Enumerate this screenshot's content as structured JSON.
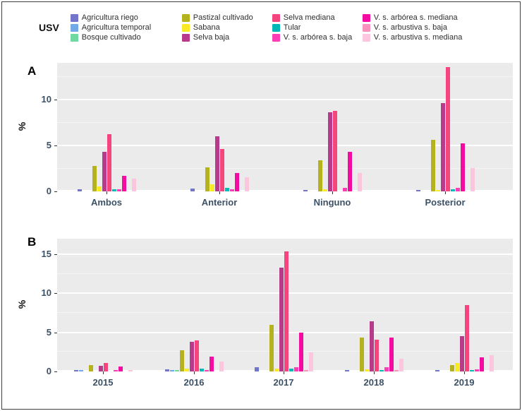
{
  "legend": {
    "title": "USV"
  },
  "panels": {
    "a_label": "A",
    "b_label": "B"
  },
  "ylabel": "%",
  "chart_data": [
    {
      "type": "bar",
      "panel": "A",
      "title": "",
      "xlabel": "",
      "ylabel": "%",
      "categories": [
        "Ambos",
        "Anterior",
        "Ninguno",
        "Posterior"
      ],
      "yticks": [
        0,
        5,
        10
      ],
      "minor_gridlines": [
        2.5,
        7.5,
        12.5
      ],
      "ylim": [
        0,
        14
      ],
      "legend_position": "top",
      "grid": true,
      "series": [
        {
          "name": "Agricultura riego",
          "color": "#7375CB",
          "values": [
            0.2,
            0.3,
            0.15,
            0.15
          ]
        },
        {
          "name": "Agricultura temporal",
          "color": "#74A9E8",
          "values": [
            0,
            0,
            0,
            0
          ]
        },
        {
          "name": "Bosque cultivado",
          "color": "#70D9A1",
          "values": [
            0,
            0,
            0,
            0
          ]
        },
        {
          "name": "Pastizal cultivado",
          "color": "#B4B21D",
          "values": [
            2.8,
            2.6,
            3.4,
            5.6
          ]
        },
        {
          "name": "Sabana",
          "color": "#F8EA27",
          "values": [
            0.5,
            0.8,
            0.25,
            0.15
          ]
        },
        {
          "name": "Selva baja",
          "color": "#B73A8D",
          "values": [
            4.3,
            6.0,
            8.6,
            9.6
          ]
        },
        {
          "name": "Selva mediana",
          "color": "#F6447E",
          "values": [
            6.2,
            4.6,
            8.8,
            13.5
          ]
        },
        {
          "name": "Tular",
          "color": "#00B8B5",
          "values": [
            0.2,
            0.4,
            0,
            0.2
          ]
        },
        {
          "name": "V. s. arbórea s. baja",
          "color": "#FC3DB6",
          "values": [
            0.2,
            0.2,
            0.35,
            0.4
          ]
        },
        {
          "name": "V. s. arbórea s. mediana",
          "color": "#F30BA2",
          "values": [
            1.7,
            2.0,
            4.3,
            5.2
          ]
        },
        {
          "name": "V. s. arbustiva s. baja",
          "color": "#F992BC",
          "values": [
            0,
            0,
            0,
            0
          ]
        },
        {
          "name": "V. s. arbustiva s. mediana",
          "color": "#FBC6DE",
          "values": [
            1.4,
            1.5,
            2.0,
            2.5
          ]
        }
      ]
    },
    {
      "type": "bar",
      "panel": "B",
      "title": "",
      "xlabel": "",
      "ylabel": "%",
      "categories": [
        "2015",
        "2016",
        "2017",
        "2018",
        "2019"
      ],
      "yticks": [
        0,
        5,
        10,
        15
      ],
      "minor_gridlines": [
        2.5,
        7.5,
        12.5
      ],
      "ylim": [
        0,
        17
      ],
      "legend_position": "top",
      "grid": true,
      "series": [
        {
          "name": "Agricultura riego",
          "color": "#7375CB",
          "values": [
            0.15,
            0.25,
            0.5,
            0.15,
            0.15
          ]
        },
        {
          "name": "Agricultura temporal",
          "color": "#74A9E8",
          "values": [
            0.15,
            0.15,
            0,
            0,
            0
          ]
        },
        {
          "name": "Bosque cultivado",
          "color": "#70D9A1",
          "values": [
            0,
            0.1,
            0,
            0,
            0
          ]
        },
        {
          "name": "Pastizal cultivado",
          "color": "#B4B21D",
          "values": [
            0.85,
            2.7,
            6.0,
            4.3,
            0.8
          ]
        },
        {
          "name": "Sabana",
          "color": "#F8EA27",
          "values": [
            0,
            0.35,
            0.35,
            0.25,
            1.1
          ]
        },
        {
          "name": "Selva baja",
          "color": "#B73A8D",
          "values": [
            0.7,
            3.8,
            13.3,
            6.4,
            4.5
          ]
        },
        {
          "name": "Selva mediana",
          "color": "#F6447E",
          "values": [
            1.1,
            4.0,
            15.4,
            4.1,
            8.5
          ]
        },
        {
          "name": "Tular",
          "color": "#00B8B5",
          "values": [
            0,
            0.35,
            0.35,
            0.2,
            0.2
          ]
        },
        {
          "name": "V. s. arbórea s. baja",
          "color": "#FC3DB6",
          "values": [
            0.15,
            0.2,
            0.5,
            0.5,
            0.3
          ]
        },
        {
          "name": "V. s. arbórea s. mediana",
          "color": "#F30BA2",
          "values": [
            0.6,
            1.9,
            5.0,
            4.3,
            1.8
          ]
        },
        {
          "name": "V. s. arbustiva s. baja",
          "color": "#F992BC",
          "values": [
            0,
            0,
            0.15,
            0.15,
            0
          ]
        },
        {
          "name": "V. s. arbustiva s. mediana",
          "color": "#FBC6DE",
          "values": [
            0.2,
            1.3,
            2.4,
            1.6,
            2.1
          ]
        }
      ]
    }
  ]
}
